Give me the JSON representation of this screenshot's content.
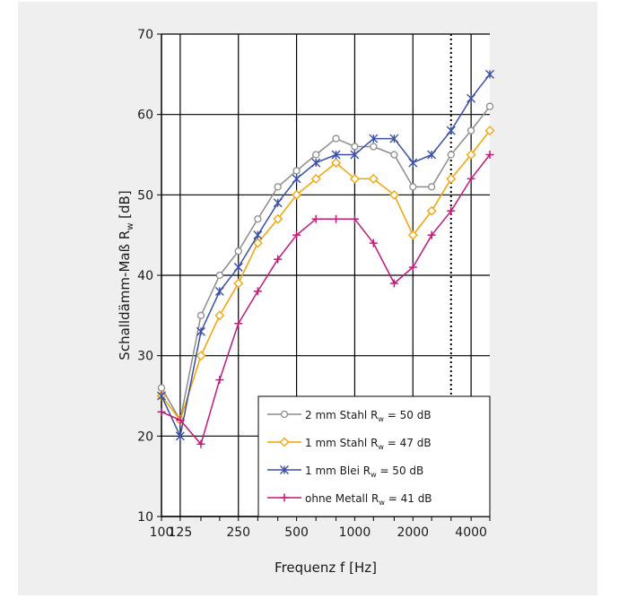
{
  "chart_data": {
    "type": "line",
    "title": "",
    "xlabel": "Frequenz f [Hz]",
    "ylabel_main": "Schalldämm-Maß R",
    "ylabel_sub": "w",
    "ylabel_unit": " [dB]",
    "x_scale": "log",
    "xlim": [
      100,
      5000
    ],
    "ylim": [
      10,
      70
    ],
    "x": [
      100,
      125,
      160,
      200,
      250,
      315,
      400,
      500,
      630,
      800,
      1000,
      1250,
      1600,
      2000,
      2500,
      3150,
      4000,
      5000
    ],
    "x_tick_labels": [
      {
        "value": 100,
        "label": "100"
      },
      {
        "value": 125,
        "label": "125"
      },
      {
        "value": 250,
        "label": "250"
      },
      {
        "value": 500,
        "label": "500"
      },
      {
        "value": 1000,
        "label": "1000"
      },
      {
        "value": 2000,
        "label": "2000"
      },
      {
        "value": 4000,
        "label": "4000"
      }
    ],
    "y_ticks": [
      10,
      20,
      30,
      40,
      50,
      60,
      70
    ],
    "x_gridlines": [
      125,
      250,
      500,
      1000,
      2000,
      4000
    ],
    "grid": true,
    "reference_line": {
      "x": 3150,
      "style": "dotted"
    },
    "legend_position": "bottom-right",
    "series": [
      {
        "name_prefix": "2 mm Stahl  R",
        "name_sub": "w",
        "name_suffix": " = 50 dB",
        "color": "#8c8c8c",
        "marker": "circle",
        "values": [
          26,
          22,
          35,
          40,
          43,
          47,
          51,
          53,
          55,
          57,
          56,
          56,
          55,
          51,
          51,
          55,
          58,
          61
        ]
      },
      {
        "name_prefix": "1 mm Stahl  R",
        "name_sub": "w",
        "name_suffix": " = 47 dB",
        "color": "#f5a100",
        "marker": "diamond",
        "values": [
          25,
          22,
          30,
          35,
          39,
          44,
          47,
          50,
          52,
          54,
          52,
          52,
          50,
          45,
          48,
          52,
          55,
          58
        ]
      },
      {
        "name_prefix": "1 mm Blei  R",
        "name_sub": "w",
        "name_suffix": " = 50 dB",
        "color": "#3a50a6",
        "marker": "asterisk",
        "values": [
          25,
          20,
          33,
          38,
          41,
          45,
          49,
          52,
          54,
          55,
          55,
          57,
          57,
          54,
          55,
          58,
          62,
          65
        ]
      },
      {
        "name_prefix": "ohne Metall  R",
        "name_sub": "w",
        "name_suffix": " = 41 dB",
        "color": "#c2187a",
        "marker": "plus",
        "values": [
          23,
          22,
          19,
          27,
          34,
          38,
          42,
          45,
          47,
          47,
          47,
          44,
          39,
          41,
          45,
          48,
          52,
          55
        ]
      }
    ]
  }
}
